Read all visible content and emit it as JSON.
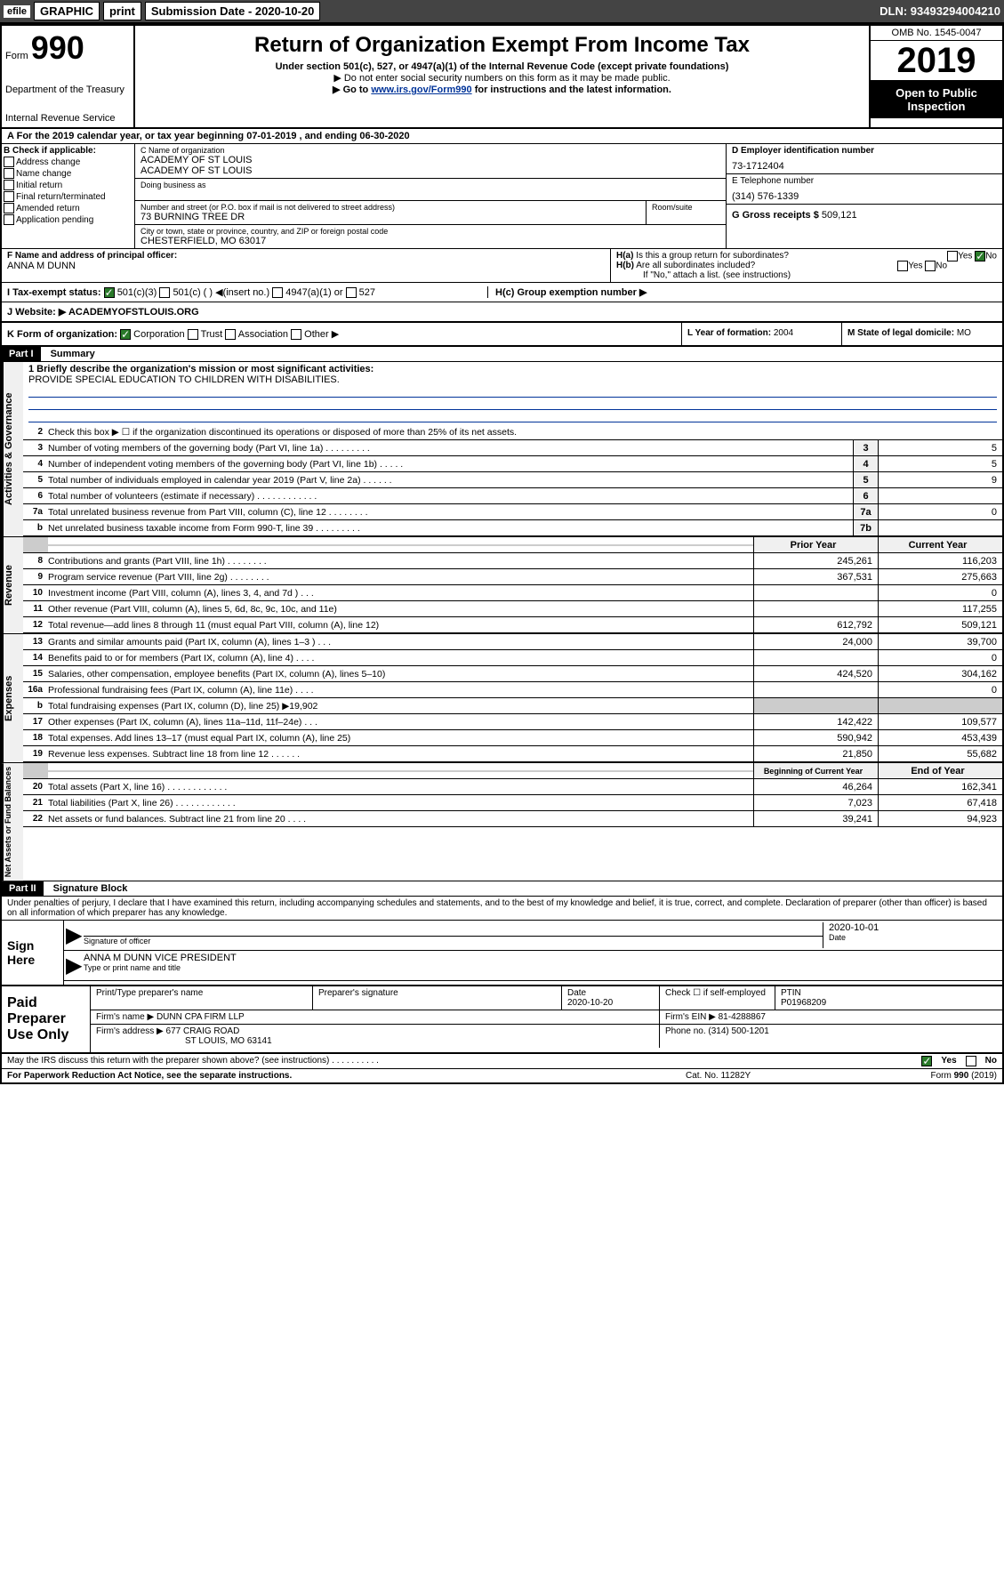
{
  "toolbar": {
    "efile": "efile",
    "graphic": "GRAPHIC",
    "print": "print",
    "submission_label": "Submission Date - 2020-10-20",
    "dln": "DLN: 93493294004210"
  },
  "header": {
    "form_prefix": "Form",
    "form_number": "990",
    "title": "Return of Organization Exempt From Income Tax",
    "subtitle": "Under section 501(c), 527, or 4947(a)(1) of the Internal Revenue Code (except private foundations)",
    "warning": "▶ Do not enter social security numbers on this form as it may be made public.",
    "goto_prefix": "▶ Go to ",
    "goto_link": "www.irs.gov/Form990",
    "goto_suffix": " for instructions and the latest information.",
    "dept": "Department of the Treasury",
    "irs": "Internal Revenue Service",
    "omb": "OMB No. 1545-0047",
    "year": "2019",
    "inspection1": "Open to Public",
    "inspection2": "Inspection"
  },
  "section_a": {
    "text": "For the 2019 calendar year, or tax year beginning 07-01-2019     , and ending 06-30-2020"
  },
  "section_b": {
    "label": "B Check if applicable:",
    "items": [
      "Address change",
      "Name change",
      "Initial return",
      "Final return/terminated",
      "Amended return",
      "Application pending"
    ]
  },
  "section_c": {
    "label": "C Name of organization",
    "name1": "ACADEMY OF ST LOUIS",
    "name2": "ACADEMY OF ST LOUIS",
    "dba_label": "Doing business as",
    "addr_label": "Number and street (or P.O. box if mail is not delivered to street address)",
    "room_label": "Room/suite",
    "addr": "73 BURNING TREE DR",
    "city_label": "City or town, state or province, country, and ZIP or foreign postal code",
    "city": "CHESTERFIELD, MO  63017"
  },
  "section_d": {
    "label": "D Employer identification number",
    "value": "73-1712404"
  },
  "section_e": {
    "label": "E Telephone number",
    "value": "(314) 576-1339"
  },
  "section_g": {
    "label": "G Gross receipts $",
    "value": "509,121"
  },
  "section_f": {
    "label": "F  Name and address of principal officer:",
    "value": "ANNA M DUNN"
  },
  "section_h": {
    "ha_label": "H(a)  Is this a group return for subordinates?",
    "hb_label": "H(b)  Are all subordinates included?",
    "hb_note": "If \"No,\" attach a list. (see instructions)",
    "hc_label": "H(c)  Group exemption number ▶",
    "yes": "Yes",
    "no": "No"
  },
  "section_i": {
    "label": "I  Tax-exempt status:",
    "opts": [
      "501(c)(3)",
      "501(c) (   ) ◀(insert no.)",
      "4947(a)(1) or",
      "527"
    ]
  },
  "section_j": {
    "label": "J  Website: ▶",
    "value": "ACADEMYOFSTLOUIS.ORG"
  },
  "section_k": {
    "label": "K Form of organization:",
    "opts": [
      "Corporation",
      "Trust",
      "Association",
      "Other ▶"
    ]
  },
  "section_l": {
    "label": "L Year of formation:",
    "value": "2004"
  },
  "section_m": {
    "label": "M State of legal domicile:",
    "value": "MO"
  },
  "part1": {
    "number": "Part I",
    "title": "Summary"
  },
  "mission": {
    "q1": "1  Briefly describe the organization's mission or most significant activities:",
    "text": "PROVIDE SPECIAL EDUCATION TO CHILDREN WITH DISABILITIES."
  },
  "governance": {
    "label": "Activities & Governance",
    "lines": [
      {
        "n": "2",
        "t": "Check this box ▶ ☐  if the organization discontinued its operations or disposed of more than 25% of its net assets."
      },
      {
        "n": "3",
        "t": "Number of voting members of the governing body (Part VI, line 1a)   .    .    .    .    .    .    .    .    .",
        "b": "3",
        "v": "5"
      },
      {
        "n": "4",
        "t": "Number of independent voting members of the governing body (Part VI, line 1b)   .    .    .    .    .",
        "b": "4",
        "v": "5"
      },
      {
        "n": "5",
        "t": "Total number of individuals employed in calendar year 2019 (Part V, line 2a)   .    .    .    .    .    .",
        "b": "5",
        "v": "9"
      },
      {
        "n": "6",
        "t": "Total number of volunteers (estimate if necessary)   .    .    .    .    .    .    .    .    .    .    .    .",
        "b": "6",
        "v": ""
      },
      {
        "n": "7a",
        "t": "Total unrelated business revenue from Part VIII, column (C), line 12   .    .    .    .    .    .    .    .",
        "b": "7a",
        "v": "0"
      },
      {
        "n": "b",
        "t": "Net unrelated business taxable income from Form 990-T, line 39   .    .    .    .    .    .    .    .    .",
        "b": "7b",
        "v": ""
      }
    ]
  },
  "revenue": {
    "label": "Revenue",
    "header_prior": "Prior Year",
    "header_current": "Current Year",
    "lines": [
      {
        "n": "8",
        "t": "Contributions and grants (Part VIII, line 1h)   .    .    .    .    .    .    .    .",
        "p": "245,261",
        "c": "116,203"
      },
      {
        "n": "9",
        "t": "Program service revenue (Part VIII, line 2g)   .    .    .    .    .    .    .    .",
        "p": "367,531",
        "c": "275,663"
      },
      {
        "n": "10",
        "t": "Investment income (Part VIII, column (A), lines 3, 4, and 7d )   .    .    .",
        "p": "",
        "c": "0"
      },
      {
        "n": "11",
        "t": "Other revenue (Part VIII, column (A), lines 5, 6d, 8c, 9c, 10c, and 11e)",
        "p": "",
        "c": "117,255"
      },
      {
        "n": "12",
        "t": "Total revenue—add lines 8 through 11 (must equal Part VIII, column (A), line 12)",
        "p": "612,792",
        "c": "509,121"
      }
    ]
  },
  "expenses": {
    "label": "Expenses",
    "lines": [
      {
        "n": "13",
        "t": "Grants and similar amounts paid (Part IX, column (A), lines 1–3 )   .    .    .",
        "p": "24,000",
        "c": "39,700"
      },
      {
        "n": "14",
        "t": "Benefits paid to or for members (Part IX, column (A), line 4)   .    .    .    .",
        "p": "",
        "c": "0"
      },
      {
        "n": "15",
        "t": "Salaries, other compensation, employee benefits (Part IX, column (A), lines 5–10)",
        "p": "424,520",
        "c": "304,162"
      },
      {
        "n": "16a",
        "t": "Professional fundraising fees (Part IX, column (A), line 11e)   .    .    .    .",
        "p": "",
        "c": "0"
      },
      {
        "n": "b",
        "t": "Total fundraising expenses (Part IX, column (D), line 25) ▶19,902",
        "p": "",
        "c": "",
        "gray": true
      },
      {
        "n": "17",
        "t": "Other expenses (Part IX, column (A), lines 11a–11d, 11f–24e)   .    .    .",
        "p": "142,422",
        "c": "109,577"
      },
      {
        "n": "18",
        "t": "Total expenses. Add lines 13–17 (must equal Part IX, column (A), line 25)",
        "p": "590,942",
        "c": "453,439"
      },
      {
        "n": "19",
        "t": "Revenue less expenses. Subtract line 18 from line 12   .    .    .    .    .    .",
        "p": "21,850",
        "c": "55,682"
      }
    ]
  },
  "netassets": {
    "label": "Net Assets or Fund Balances",
    "header_begin": "Beginning of Current Year",
    "header_end": "End of Year",
    "lines": [
      {
        "n": "20",
        "t": "Total assets (Part X, line 16)   .    .    .    .    .    .    .    .    .    .    .    .",
        "p": "46,264",
        "c": "162,341"
      },
      {
        "n": "21",
        "t": "Total liabilities (Part X, line 26)   .    .    .    .    .    .    .    .    .    .    .    .",
        "p": "7,023",
        "c": "67,418"
      },
      {
        "n": "22",
        "t": "Net assets or fund balances. Subtract line 21 from line 20   .    .    .    .",
        "p": "39,241",
        "c": "94,923"
      }
    ]
  },
  "part2": {
    "number": "Part II",
    "title": "Signature Block"
  },
  "perjury": "Under penalties of perjury, I declare that I have examined this return, including accompanying schedules and statements, and to the best of my knowledge and belief, it is true, correct, and complete. Declaration of preparer (other than officer) is based on all information of which preparer has any knowledge.",
  "sign": {
    "label1": "Sign",
    "label2": "Here",
    "sig_label": "Signature of officer",
    "date": "2020-10-01",
    "date_label": "Date",
    "name": "ANNA M DUNN  VICE PRESIDENT",
    "name_label": "Type or print name and title"
  },
  "paid": {
    "label1": "Paid",
    "label2": "Preparer",
    "label3": "Use Only",
    "h1": "Print/Type preparer's name",
    "h2": "Preparer's signature",
    "h3": "Date",
    "h3v": "2020-10-20",
    "h4": "Check ☐ if self-employed",
    "h5": "PTIN",
    "h5v": "P01968209",
    "firm_label": "Firm's name     ▶",
    "firm": "DUNN CPA FIRM LLP",
    "ein_label": "Firm's EIN ▶",
    "ein": "81-4288867",
    "addr_label": "Firm's address ▶",
    "addr1": "677 CRAIG ROAD",
    "addr2": "ST LOUIS, MO  63141",
    "phone_label": "Phone no.",
    "phone": "(314) 500-1201"
  },
  "discuss": {
    "text": "May the IRS discuss this return with the preparer shown above? (see instructions)   .    .    .    .    .    .    .    .    .    .",
    "yes": "Yes",
    "no": "No"
  },
  "footer": {
    "paperwork": "For Paperwork Reduction Act Notice, see the separate instructions.",
    "cat": "Cat. No. 11282Y",
    "form": "Form 990 (2019)"
  }
}
